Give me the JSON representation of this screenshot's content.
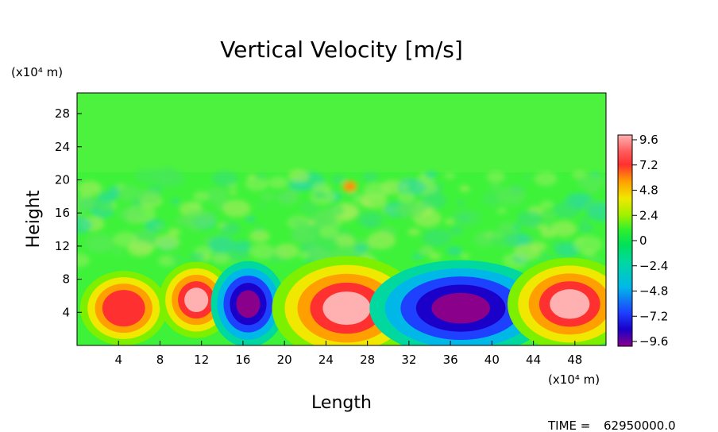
{
  "chart_data": {
    "type": "heatmap",
    "title": "Vertical Velocity [m/s]",
    "xlabel": "Length",
    "ylabel": "Height",
    "x_unit": "(x10⁴ m)",
    "y_unit": "(x10⁴ m)",
    "xlim": [
      0,
      51
    ],
    "ylim": [
      0,
      30.5
    ],
    "x_ticks": [
      "4",
      "8",
      "12",
      "16",
      "20",
      "24",
      "28",
      "32",
      "36",
      "40",
      "44",
      "48"
    ],
    "y_ticks": [
      "4",
      "8",
      "12",
      "16",
      "20",
      "24",
      "28"
    ],
    "colorbar": {
      "ticks": [
        "9.6",
        "7.2",
        "4.8",
        "2.4",
        "0",
        "−2.4",
        "−4.8",
        "−7.2",
        "−9.6"
      ],
      "range": [
        -9.6,
        9.6
      ],
      "colors": [
        "#8a008a",
        "#1a00c8",
        "#1e40ff",
        "#00b8e8",
        "#00d8a0",
        "#00e05a",
        "#2ef02e",
        "#a0f000",
        "#f0e800",
        "#ffa000",
        "#ff3030",
        "#ff5a5a",
        "#ffb0b0"
      ]
    },
    "features": [
      {
        "type": "updraft",
        "x": 4.5,
        "z": 4.5,
        "max": 7.5
      },
      {
        "type": "updraft",
        "x": 11.5,
        "z": 5.5,
        "max": 9.6
      },
      {
        "type": "downdraft",
        "x": 16.5,
        "z": 5,
        "min": -9.6
      },
      {
        "type": "updraft",
        "x": 26,
        "z": 4.5,
        "max": 9.6
      },
      {
        "type": "downdraft",
        "x": 37,
        "z": 4.5,
        "min": -9.6
      },
      {
        "type": "updraft",
        "x": 47.5,
        "z": 5,
        "max": 9.6
      }
    ],
    "time_label": "TIME =",
    "time_value": "62950000.0"
  }
}
